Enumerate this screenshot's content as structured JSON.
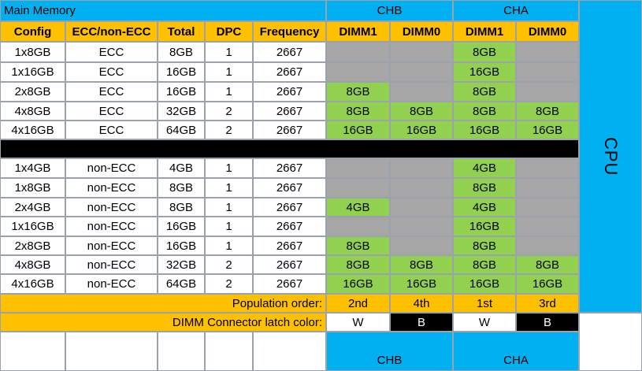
{
  "title": "Main Memory",
  "channels": {
    "chb": "CHB",
    "cha": "CHA"
  },
  "cpu_label": "CPU",
  "headers": [
    "Config",
    "ECC/non-ECC",
    "Total",
    "DPC",
    "Frequency",
    "DIMM1",
    "DIMM0",
    "DIMM1",
    "DIMM0"
  ],
  "ecc_rows": [
    {
      "config": "1x8GB",
      "type": "ECC",
      "total": "8GB",
      "dpc": "1",
      "freq": "2667",
      "chb_dimm1": "",
      "chb_dimm0": "",
      "cha_dimm1": "8GB",
      "cha_dimm0": ""
    },
    {
      "config": "1x16GB",
      "type": "ECC",
      "total": "16GB",
      "dpc": "1",
      "freq": "2667",
      "chb_dimm1": "",
      "chb_dimm0": "",
      "cha_dimm1": "16GB",
      "cha_dimm0": ""
    },
    {
      "config": "2x8GB",
      "type": "ECC",
      "total": "16GB",
      "dpc": "1",
      "freq": "2667",
      "chb_dimm1": "8GB",
      "chb_dimm0": "",
      "cha_dimm1": "8GB",
      "cha_dimm0": ""
    },
    {
      "config": "4x8GB",
      "type": "ECC",
      "total": "32GB",
      "dpc": "2",
      "freq": "2667",
      "chb_dimm1": "8GB",
      "chb_dimm0": "8GB",
      "cha_dimm1": "8GB",
      "cha_dimm0": "8GB"
    },
    {
      "config": "4x16GB",
      "type": "ECC",
      "total": "64GB",
      "dpc": "2",
      "freq": "2667",
      "chb_dimm1": "16GB",
      "chb_dimm0": "16GB",
      "cha_dimm1": "16GB",
      "cha_dimm0": "16GB"
    }
  ],
  "nonecc_rows": [
    {
      "config": "1x4GB",
      "type": "non-ECC",
      "total": "4GB",
      "dpc": "1",
      "freq": "2667",
      "chb_dimm1": "",
      "chb_dimm0": "",
      "cha_dimm1": "4GB",
      "cha_dimm0": ""
    },
    {
      "config": "1x8GB",
      "type": "non-ECC",
      "total": "8GB",
      "dpc": "1",
      "freq": "2667",
      "chb_dimm1": "",
      "chb_dimm0": "",
      "cha_dimm1": "8GB",
      "cha_dimm0": ""
    },
    {
      "config": "2x4GB",
      "type": "non-ECC",
      "total": "8GB",
      "dpc": "1",
      "freq": "2667",
      "chb_dimm1": "4GB",
      "chb_dimm0": "",
      "cha_dimm1": "4GB",
      "cha_dimm0": ""
    },
    {
      "config": "1x16GB",
      "type": "non-ECC",
      "total": "16GB",
      "dpc": "1",
      "freq": "2667",
      "chb_dimm1": "",
      "chb_dimm0": "",
      "cha_dimm1": "16GB",
      "cha_dimm0": ""
    },
    {
      "config": "2x8GB",
      "type": "non-ECC",
      "total": "16GB",
      "dpc": "1",
      "freq": "2667",
      "chb_dimm1": "8GB",
      "chb_dimm0": "",
      "cha_dimm1": "8GB",
      "cha_dimm0": ""
    },
    {
      "config": "4x8GB",
      "type": "non-ECC",
      "total": "32GB",
      "dpc": "2",
      "freq": "2667",
      "chb_dimm1": "8GB",
      "chb_dimm0": "8GB",
      "cha_dimm1": "8GB",
      "cha_dimm0": "8GB"
    },
    {
      "config": "4x16GB",
      "type": "non-ECC",
      "total": "64GB",
      "dpc": "2",
      "freq": "2667",
      "chb_dimm1": "16GB",
      "chb_dimm0": "16GB",
      "cha_dimm1": "16GB",
      "cha_dimm0": "16GB"
    }
  ],
  "population_order": {
    "label": "Population order:",
    "values": [
      "2nd",
      "4th",
      "1st",
      "3rd"
    ]
  },
  "latch_color": {
    "label": "DIMM Connector latch color:",
    "values": [
      "W",
      "B",
      "W",
      "B"
    ]
  }
}
